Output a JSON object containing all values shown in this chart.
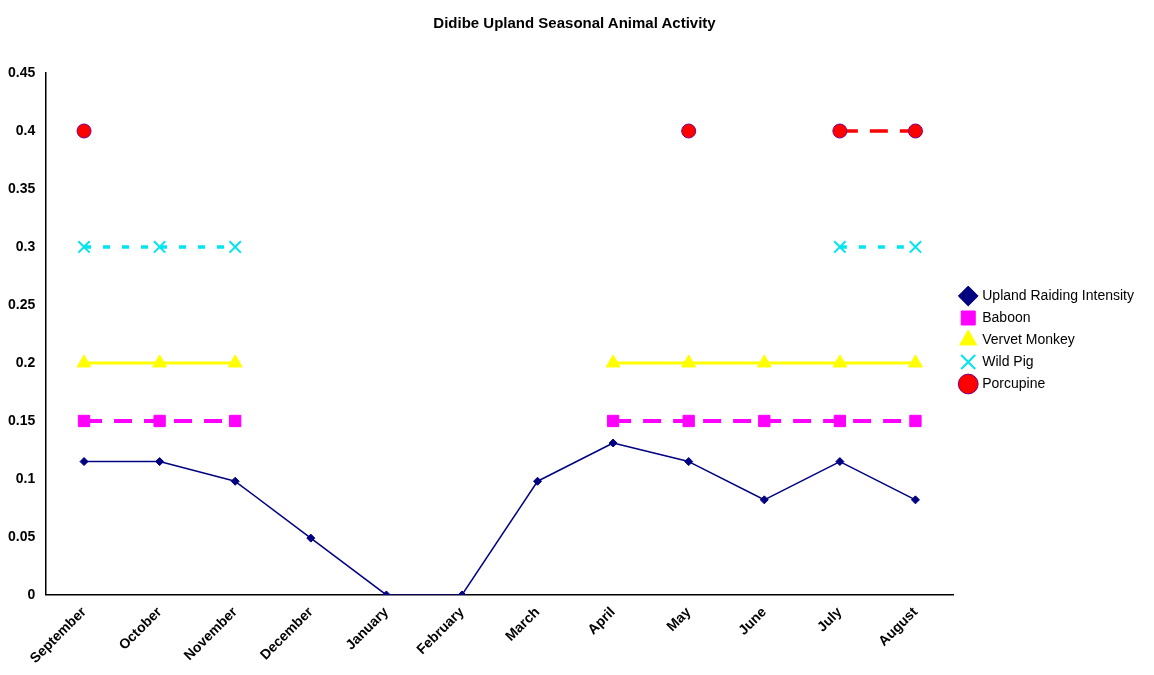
{
  "chart_data": {
    "type": "line",
    "title": "Didibe Upland Seasonal Animal Activity",
    "categories": [
      "September",
      "October",
      "November",
      "December",
      "January",
      "February",
      "March",
      "April",
      "May",
      "June",
      "July",
      "August"
    ],
    "ylim": [
      0,
      0.45
    ],
    "yticks": [
      0,
      0.05,
      0.1,
      0.15,
      0.2,
      0.25,
      0.3,
      0.35,
      0.4,
      0.45
    ],
    "grid": false,
    "legend": "right",
    "series": [
      {
        "name": "Upland Raiding Intensity",
        "color": "#000080",
        "marker": "diamond",
        "line_style": "solid",
        "values": [
          0.115,
          0.115,
          0.098,
          0.049,
          0,
          0,
          0.098,
          0.131,
          0.115,
          0.082,
          0.115,
          0.082
        ]
      },
      {
        "name": "Baboon",
        "color": "#ff00ff",
        "marker": "square",
        "line_style": "dashed",
        "values": [
          0.15,
          0.15,
          0.15,
          null,
          null,
          null,
          null,
          0.15,
          0.15,
          0.15,
          0.15,
          0.15
        ]
      },
      {
        "name": "Vervet Monkey",
        "color": "#ffff00",
        "marker": "triangle",
        "line_style": "solid",
        "values": [
          0.2,
          0.2,
          0.2,
          null,
          null,
          null,
          null,
          0.2,
          0.2,
          0.2,
          0.2,
          0.2
        ]
      },
      {
        "name": "Wild Pig",
        "color": "#00e5ee",
        "marker": "cross",
        "line_style": "dotted",
        "values": [
          0.3,
          0.3,
          0.3,
          null,
          null,
          null,
          null,
          null,
          null,
          null,
          0.3,
          0.3
        ]
      },
      {
        "name": "Porcupine",
        "color": "#ff0000",
        "marker": "circle",
        "line_style": "dashed",
        "values": [
          0.4,
          null,
          null,
          null,
          null,
          null,
          null,
          null,
          0.4,
          null,
          0.4,
          0.4
        ]
      }
    ]
  }
}
